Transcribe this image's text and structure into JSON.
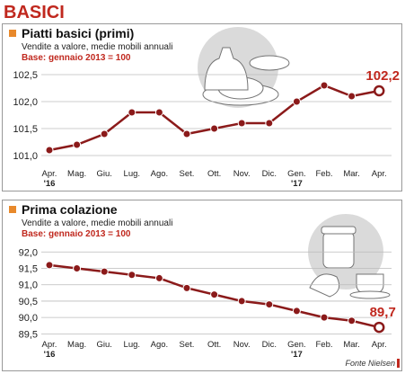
{
  "title": "BASICI",
  "source": "Fonte Nielsen",
  "chart_data": [
    {
      "type": "line",
      "title": "Piatti basici (primi)",
      "subtitle": "Vendite a valore, medie mobili annuali",
      "note": "Base: gennaio 2013 = 100",
      "categories": [
        "Apr.\n'16",
        "Mag.",
        "Giu.",
        "Lug.",
        "Ago.",
        "Set.",
        "Ott.",
        "Nov.",
        "Dic.",
        "Gen.\n'17",
        "Feb.",
        "Mar.",
        "Apr."
      ],
      "series": [
        {
          "name": "Piatti basici (primi)",
          "color": "#8b1a1a",
          "values": [
            101.1,
            101.2,
            101.4,
            101.8,
            101.8,
            101.4,
            101.5,
            101.6,
            101.6,
            102.0,
            102.3,
            102.1,
            102.2
          ],
          "value_labels": [
            null,
            null,
            null,
            null,
            null,
            null,
            null,
            null,
            null,
            null,
            null,
            null,
            "102,2"
          ]
        }
      ],
      "ylim": [
        100.8,
        102.7
      ],
      "yticks": [
        {
          "value": 101.0,
          "label": "101,0"
        },
        {
          "value": 101.5,
          "label": "101,5"
        },
        {
          "value": 102.0,
          "label": "102,0"
        },
        {
          "value": 102.5,
          "label": "102,5"
        }
      ],
      "grid": true
    },
    {
      "type": "line",
      "title": "Prima colazione",
      "subtitle": "Vendite a valore, medie mobili annuali",
      "note": "Base: gennaio 2013 = 100",
      "categories": [
        "Apr.\n'16",
        "Mag.",
        "Giu.",
        "Lug.",
        "Ago.",
        "Set.",
        "Ott.",
        "Nov.",
        "Dic.",
        "Gen.\n'17",
        "Feb.",
        "Mar.",
        "Apr."
      ],
      "series": [
        {
          "name": "Prima colazione",
          "color": "#8b1a1a",
          "values": [
            91.6,
            91.5,
            91.4,
            91.3,
            91.2,
            90.9,
            90.7,
            90.5,
            90.4,
            90.2,
            90.0,
            89.9,
            89.7
          ],
          "value_labels": [
            null,
            null,
            null,
            null,
            null,
            null,
            null,
            null,
            null,
            null,
            null,
            null,
            "89,7"
          ]
        }
      ],
      "ylim": [
        89.4,
        92.2
      ],
      "yticks": [
        {
          "value": 89.5,
          "label": "89,5"
        },
        {
          "value": 90.0,
          "label": "90,0"
        },
        {
          "value": 90.5,
          "label": "90,5"
        },
        {
          "value": 91.0,
          "label": "91,0"
        },
        {
          "value": 91.5,
          "label": "91,5"
        },
        {
          "value": 92.0,
          "label": "92,0"
        }
      ],
      "grid": true
    }
  ]
}
